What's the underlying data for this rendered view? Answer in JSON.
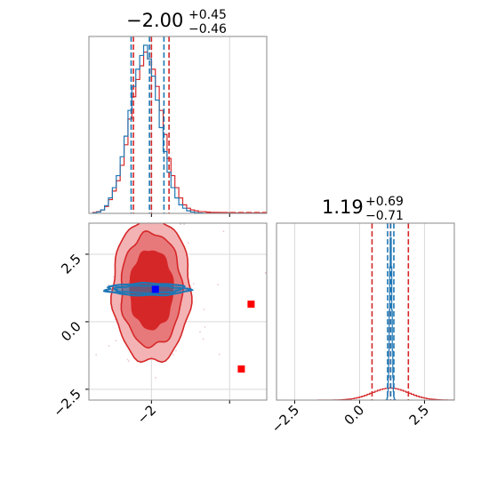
{
  "colors": {
    "blue": "#1f77b4",
    "red": "#d62728",
    "marker_red": "#ff0000",
    "marker_blue": "#0000ff",
    "red_fill_outer": "#f3b3b4",
    "red_fill_mid": "#e8797a",
    "red_fill_inner": "#d62728",
    "grid": "#d9d9d9",
    "spine": "#888888"
  },
  "chart_data": [
    {
      "panel": "top-left",
      "type": "histogram",
      "title": {
        "main": "−2.00",
        "sup": "+0.45",
        "sub": "−0.46"
      },
      "xlim": [
        -3.6,
        0.95
      ],
      "grid": true,
      "series": [
        {
          "name": "",
          "color": "#d62728",
          "bins": [
            -3.5,
            -3.4,
            -3.3,
            -3.2,
            -3.1,
            -3.0,
            -2.9,
            -2.8,
            -2.7,
            -2.6,
            -2.5,
            -2.4,
            -2.3,
            -2.2,
            -2.1,
            -2.0,
            -1.9,
            -1.8,
            -1.7,
            -1.6,
            -1.5,
            -1.4,
            -1.3,
            -1.2,
            -1.1,
            -1.0,
            -0.9,
            -0.8,
            -0.7,
            -0.6,
            -0.5,
            -0.4,
            -0.3,
            -0.2,
            -0.1,
            0.0,
            0.1,
            0.2,
            0.3,
            0.4,
            0.5,
            0.6,
            0.7,
            0.8,
            0.9
          ],
          "counts": [
            0.005,
            0.01,
            0.02,
            0.04,
            0.08,
            0.13,
            0.19,
            0.28,
            0.4,
            0.55,
            0.68,
            0.78,
            0.86,
            0.94,
            0.9,
            0.84,
            0.74,
            0.6,
            0.46,
            0.32,
            0.22,
            0.15,
            0.09,
            0.05,
            0.03,
            0.02,
            0.015,
            0.01,
            0.01,
            0.008,
            0.006,
            0.005,
            0.005,
            0.004,
            0.004,
            0.004,
            0.003,
            0.003,
            0.003,
            0.003,
            0.003,
            0.003,
            0.003,
            0.003
          ],
          "quantile_lines": [
            -2.46,
            -2.0,
            -1.55
          ]
        },
        {
          "name": "",
          "color": "#1f77b4",
          "bins": [
            -3.5,
            -3.4,
            -3.3,
            -3.2,
            -3.1,
            -3.0,
            -2.9,
            -2.8,
            -2.7,
            -2.6,
            -2.5,
            -2.4,
            -2.3,
            -2.2,
            -2.1,
            -2.0,
            -1.9,
            -1.8,
            -1.7,
            -1.6,
            -1.5,
            -1.4,
            -1.3,
            -1.2,
            -1.1,
            -1.0,
            -0.9,
            -0.8,
            -0.7,
            -0.6,
            -0.5,
            -0.4,
            -0.3,
            -0.2,
            -0.1,
            0.0,
            0.1,
            0.2,
            0.3,
            0.4,
            0.5,
            0.6,
            0.7,
            0.8,
            0.9
          ],
          "counts": [
            0.003,
            0.008,
            0.02,
            0.045,
            0.09,
            0.15,
            0.22,
            0.33,
            0.45,
            0.6,
            0.74,
            0.84,
            0.92,
            0.98,
            0.9,
            0.8,
            0.66,
            0.5,
            0.36,
            0.24,
            0.15,
            0.09,
            0.05,
            0.03,
            0.015,
            0.008,
            0.004,
            0.002,
            0.001,
            0.0,
            0.0,
            0.0,
            0.0,
            0.0,
            0.0,
            0.0,
            0.0,
            0.0,
            0.0,
            0.0,
            0.0,
            0.0,
            0.0,
            0.0
          ],
          "quantile_lines": [
            -2.52,
            -2.05,
            -1.68
          ]
        }
      ]
    },
    {
      "panel": "bottom-left",
      "type": "scatter",
      "xlim": [
        -3.6,
        0.95
      ],
      "ylim": [
        -2.9,
        3.65
      ],
      "yticks": [
        -2.5,
        0.0,
        2.5
      ],
      "ytick_labels": [
        "−2.5",
        "0.0",
        "2.5"
      ],
      "xticks": [
        -2
      ],
      "xtick_labels": [
        "−2"
      ],
      "grid": true,
      "red_contours": {
        "center": [
          -2.0,
          1.19
        ],
        "radii_x": [
          1.0,
          0.78,
          0.55
        ],
        "radii_y": [
          2.7,
          2.1,
          1.45
        ]
      },
      "blue_contours": {
        "center": [
          -2.1,
          1.2
        ],
        "radii_x": [
          1.05,
          0.85
        ],
        "radii_y": [
          0.22,
          0.14
        ]
      },
      "markers": [
        {
          "x": -1.9,
          "y": 1.2,
          "color": "#0000ff"
        },
        {
          "x": 0.55,
          "y": 0.65,
          "color": "#ff0000"
        },
        {
          "x": 0.3,
          "y": -1.75,
          "color": "#ff0000"
        }
      ]
    },
    {
      "panel": "bottom-right",
      "type": "histogram",
      "title": {
        "main": "1.19",
        "sup": "+0.69",
        "sub": "−0.71"
      },
      "xlim": [
        -3.2,
        3.65
      ],
      "xticks": [
        -2.5,
        0.0,
        2.5
      ],
      "xtick_labels": [
        "−2.5",
        "0.0",
        "2.5"
      ],
      "grid": true,
      "series": [
        {
          "name": "",
          "color": "#d62728",
          "mu": 1.19,
          "sigma": 0.7,
          "peak": 0.07,
          "quantile_lines": [
            0.48,
            1.19,
            1.88
          ]
        },
        {
          "name": "",
          "color": "#1f77b4",
          "mu": 1.2,
          "sigma": 0.045,
          "peak": 0.97,
          "quantile_lines": [
            1.08,
            1.2,
            1.32
          ]
        }
      ]
    }
  ]
}
